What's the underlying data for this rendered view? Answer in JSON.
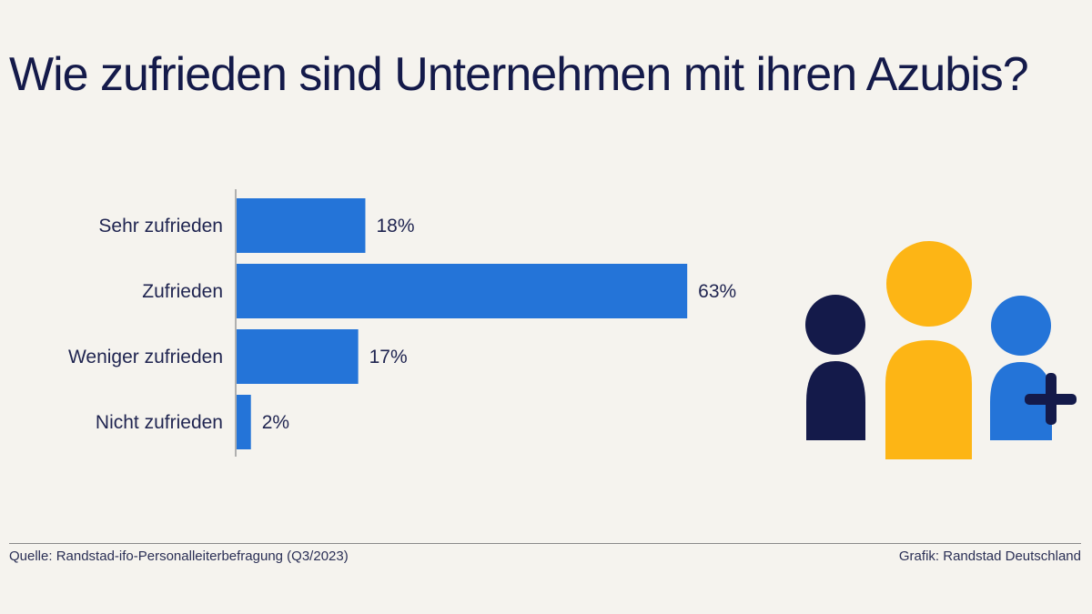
{
  "colors": {
    "background": "#f5f3ee",
    "bar": "#2474d8",
    "navy": "#141a4a",
    "yellow": "#fdb515",
    "blue": "#2474d8"
  },
  "chart_data": {
    "type": "bar",
    "orientation": "horizontal",
    "title": "Wie zufrieden sind Unternehmen mit ihren Azubis?",
    "categories": [
      "Sehr zufrieden",
      "Zufrieden",
      "Weniger zufrieden",
      "Nicht zufrieden"
    ],
    "values": [
      18,
      63,
      17,
      2
    ],
    "value_labels": [
      "18%",
      "63%",
      "17%",
      "2%"
    ],
    "unit": "%",
    "xlim": [
      0,
      100
    ],
    "grid": false,
    "legend": "none"
  },
  "illustration": {
    "icons": [
      "person-navy-icon",
      "person-yellow-icon",
      "person-blue-add-icon"
    ]
  },
  "footer": {
    "source": "Quelle: Randstad-ifo-Personalleiterbefragung (Q3/2023)",
    "credit": "Grafik: Randstad Deutschland"
  }
}
